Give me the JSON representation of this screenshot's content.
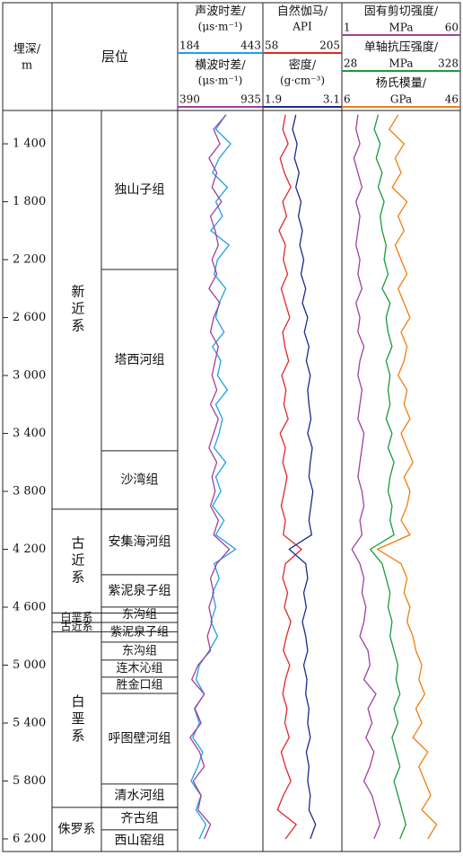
{
  "chart_data": {
    "type": "well_log",
    "depth_label": "埋深/",
    "depth_unit": "m",
    "strata_label": "层位",
    "ylim": [
      1170,
      6287
    ],
    "yticks": [
      {
        "value": 1400,
        "label": "1 400"
      },
      {
        "value": 1800,
        "label": "1 800"
      },
      {
        "value": 2200,
        "label": "2 200"
      },
      {
        "value": 2600,
        "label": "2 600"
      },
      {
        "value": 3000,
        "label": "3 000"
      },
      {
        "value": 3400,
        "label": "3 400"
      },
      {
        "value": 3800,
        "label": "3 800"
      },
      {
        "value": 4200,
        "label": "4 200"
      },
      {
        "value": 4600,
        "label": "4 600"
      },
      {
        "value": 5000,
        "label": "5 000"
      },
      {
        "value": 5400,
        "label": "5 400"
      },
      {
        "value": 5800,
        "label": "5 800"
      },
      {
        "value": 6200,
        "label": "6 200"
      }
    ],
    "systems": [
      {
        "name": "新近系",
        "top": 1170,
        "base": 3923
      },
      {
        "name": "古近系",
        "top": 3923,
        "base": 4640
      },
      {
        "name": "白垩系",
        "top": 4640,
        "base": 4705
      },
      {
        "name": "古近系",
        "top": 4705,
        "base": 4770
      },
      {
        "name": "白垩系",
        "top": 4770,
        "base": 5982
      },
      {
        "name": "侏罗系",
        "top": 5982,
        "base": 6287
      }
    ],
    "formations": [
      {
        "name": "独山子组",
        "top": 1170,
        "base": 2268
      },
      {
        "name": "塔西河组",
        "top": 2268,
        "base": 3520
      },
      {
        "name": "沙湾组",
        "top": 3520,
        "base": 3923
      },
      {
        "name": "安集海河组",
        "top": 3923,
        "base": 4376
      },
      {
        "name": "紫泥泉子组",
        "top": 4376,
        "base": 4599
      },
      {
        "name": "东沟组",
        "top": 4599,
        "base": 4705
      },
      {
        "name": "紫泥泉子组",
        "top": 4705,
        "base": 4841
      },
      {
        "name": "东沟组",
        "top": 4841,
        "base": 4965
      },
      {
        "name": "连木沁组",
        "top": 4965,
        "base": 5083
      },
      {
        "name": "胜金口组",
        "top": 5083,
        "base": 5195
      },
      {
        "name": "呼图壁河组",
        "top": 5195,
        "base": 5821
      },
      {
        "name": "清水河组",
        "top": 5821,
        "base": 5982
      },
      {
        "name": "齐古组",
        "top": 5982,
        "base": 6137
      },
      {
        "name": "西山窑组",
        "top": 6137,
        "base": 6287
      }
    ],
    "depths": [
      1200,
      1300,
      1400,
      1500,
      1600,
      1700,
      1800,
      1900,
      2000,
      2100,
      2200,
      2300,
      2400,
      2500,
      2600,
      2700,
      2800,
      2900,
      3000,
      3100,
      3200,
      3300,
      3400,
      3500,
      3600,
      3700,
      3800,
      3900,
      4000,
      4100,
      4200,
      4300,
      4400,
      4500,
      4600,
      4700,
      4800,
      4900,
      5000,
      5100,
      5200,
      5300,
      5400,
      5500,
      5600,
      5700,
      5800,
      5900,
      6000,
      6100,
      6200
    ],
    "tracks": [
      {
        "series": [
          {
            "name": "声波时差/",
            "unit": "(μs·m⁻¹)",
            "xlim": [
              184,
              443
            ],
            "color": "#1ea0e6",
            "values": [
              330,
              300,
              345,
              310,
              290,
              335,
              300,
              320,
              285,
              340,
              305,
              295,
              330,
              310,
              300,
              325,
              290,
              315,
              305,
              335,
              300,
              320,
              310,
              295,
              330,
              300,
              315,
              290,
              325,
              300,
              360,
              295,
              310,
              290,
              300,
              285,
              305,
              280,
              250,
              240,
              265,
              235,
              250,
              230,
              260,
              245,
              225,
              255,
              240,
              270,
              250
            ]
          },
          {
            "name": "横波时差/",
            "unit": "(μs·m⁻¹)",
            "xlim": [
              390,
              935
            ],
            "color": "#a040a0",
            "values": [
              700,
              620,
              660,
              590,
              640,
              610,
              670,
              600,
              630,
              650,
              610,
              640,
              590,
              660,
              620,
              600,
              650,
              630,
              610,
              640,
              600,
              650,
              620,
              590,
              640,
              610,
              630,
              600,
              650,
              620,
              720,
              640,
              600,
              620,
              590,
              610,
              580,
              600,
              520,
              480,
              560,
              500,
              540,
              470,
              530,
              560,
              490,
              540,
              520,
              600,
              560
            ]
          }
        ]
      },
      {
        "series": [
          {
            "name": "自然伽马/",
            "unit": "API",
            "xlim": [
              58,
              205
            ],
            "color": "#e0282a",
            "values": [
              100,
              95,
              105,
              90,
              98,
              110,
              95,
              102,
              88,
              100,
              96,
              104,
              92,
              100,
              108,
              95,
              99,
              106,
              93,
              101,
              97,
              105,
              90,
              100,
              95,
              103,
              98,
              92,
              100,
              96,
              130,
              100,
              95,
              104,
              98,
              110,
              102,
              96,
              108,
              100,
              95,
              103,
              99,
              107,
              92,
              100,
              110,
              96,
              85,
              120,
              100
            ]
          },
          {
            "name": "密度/",
            "unit": "(g·cm⁻³)",
            "xlim": [
              1.9,
              3.1
            ],
            "color": "#1c2a8c",
            "values": [
              2.4,
              2.35,
              2.42,
              2.38,
              2.45,
              2.4,
              2.48,
              2.44,
              2.5,
              2.46,
              2.52,
              2.48,
              2.55,
              2.5,
              2.58,
              2.53,
              2.6,
              2.56,
              2.62,
              2.58,
              2.6,
              2.63,
              2.58,
              2.65,
              2.62,
              2.6,
              2.66,
              2.63,
              2.6,
              2.64,
              2.3,
              2.55,
              2.58,
              2.52,
              2.56,
              2.5,
              2.55,
              2.58,
              2.52,
              2.57,
              2.55,
              2.6,
              2.58,
              2.62,
              2.56,
              2.6,
              2.58,
              2.62,
              2.6,
              2.7,
              2.62
            ]
          }
        ]
      },
      {
        "series": [
          {
            "name": "固有剪切强度/",
            "unit": "MPa",
            "xlim": [
              1,
              60
            ],
            "color": "#a040a0",
            "values": [
              9,
              8,
              10,
              7,
              9,
              11,
              8,
              10,
              9,
              8,
              10,
              9,
              11,
              8,
              10,
              9,
              12,
              10,
              9,
              11,
              10,
              9,
              12,
              11,
              10,
              9,
              11,
              12,
              10,
              11,
              6,
              10,
              12,
              11,
              13,
              12,
              10,
              14,
              15,
              12,
              18,
              14,
              16,
              13,
              17,
              15,
              12,
              16,
              18,
              20,
              17
            ]
          },
          {
            "name": "单轴抗压强度/",
            "unit": "MPa",
            "xlim": [
              28,
              328
            ],
            "color": "#1a9a3a",
            "values": [
              120,
              110,
              125,
              115,
              130,
              120,
              135,
              125,
              130,
              140,
              135,
              145,
              130,
              150,
              140,
              145,
              155,
              140,
              150,
              145,
              150,
              140,
              155,
              145,
              160,
              150,
              145,
              155,
              150,
              160,
              100,
              130,
              140,
              150,
              145,
              155,
              150,
              160,
              170,
              165,
              175,
              160,
              170,
              155,
              165,
              175,
              160,
              170,
              180,
              190,
              175
            ]
          },
          {
            "name": "杨氏模量/",
            "unit": "GPa",
            "xlim": [
              6,
              46
            ],
            "color": "#f07d10",
            "values": [
              25,
              22,
              27,
              24,
              26,
              23,
              28,
              25,
              27,
              24,
              26,
              28,
              25,
              27,
              29,
              26,
              28,
              27,
              25,
              28,
              27,
              29,
              26,
              28,
              30,
              27,
              29,
              28,
              26,
              29,
              18,
              26,
              28,
              27,
              29,
              28,
              30,
              31,
              33,
              32,
              34,
              31,
              33,
              30,
              35,
              32,
              34,
              36,
              33,
              38,
              35
            ]
          }
        ]
      }
    ]
  }
}
